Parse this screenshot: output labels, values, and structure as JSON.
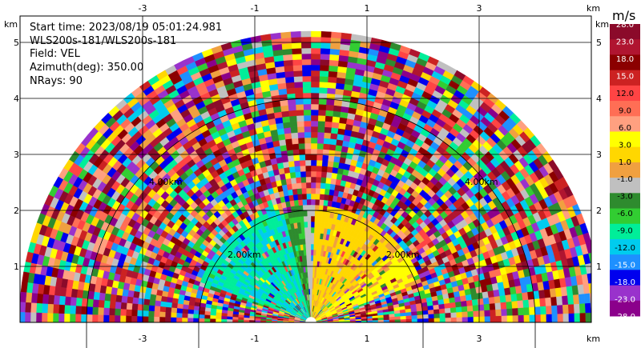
{
  "info": {
    "start_time": "Start time: 2023/08/19 05:01:24.981",
    "instrument": "WLS200s-181/WLS200s-181",
    "field": "Field: VEL",
    "azimuth": "Azimuth(deg): 350.00",
    "nrays": "NRays: 90"
  },
  "axes": {
    "x_unit": "km",
    "y_unit": "km",
    "x_ticks": [
      "-3",
      "-1",
      "1",
      "3"
    ],
    "y_ticks": [
      "1",
      "2",
      "3",
      "4",
      "5"
    ]
  },
  "range_rings": [
    "2.00km",
    "2.00km",
    "4.00km",
    "4.00km"
  ],
  "colorbar": {
    "unit": "m/s",
    "labels": [
      "28.0",
      "23.0",
      "18.0",
      "15.0",
      "12.0",
      "9.0",
      "6.0",
      "3.0",
      "1.0",
      "-1.0",
      "-3.0",
      "-6.0",
      "-9.0",
      "-12.0",
      "-15.0",
      "-18.0",
      "-23.0",
      "-28.0"
    ],
    "colors": [
      "#8b0a2a",
      "#b01530",
      "#8b0000",
      "#cc2222",
      "#ff4444",
      "#ff6e55",
      "#ffa080",
      "#ffff00",
      "#ffd700",
      "#f0a040",
      "#c0c0c0",
      "#2e8b2e",
      "#32cd32",
      "#00ee99",
      "#00ccee",
      "#1e90ff",
      "#0000ee",
      "#9932cc",
      "#8b008b"
    ]
  },
  "chart_data": {
    "type": "heatmap",
    "field": "VEL",
    "units": "m/s",
    "nrays": 90,
    "azimuth_deg": 350.0,
    "xlim_km": [
      -5.3,
      4.8
    ],
    "ylim_km": [
      0,
      5.4
    ],
    "max_range_km": 5.2
  }
}
